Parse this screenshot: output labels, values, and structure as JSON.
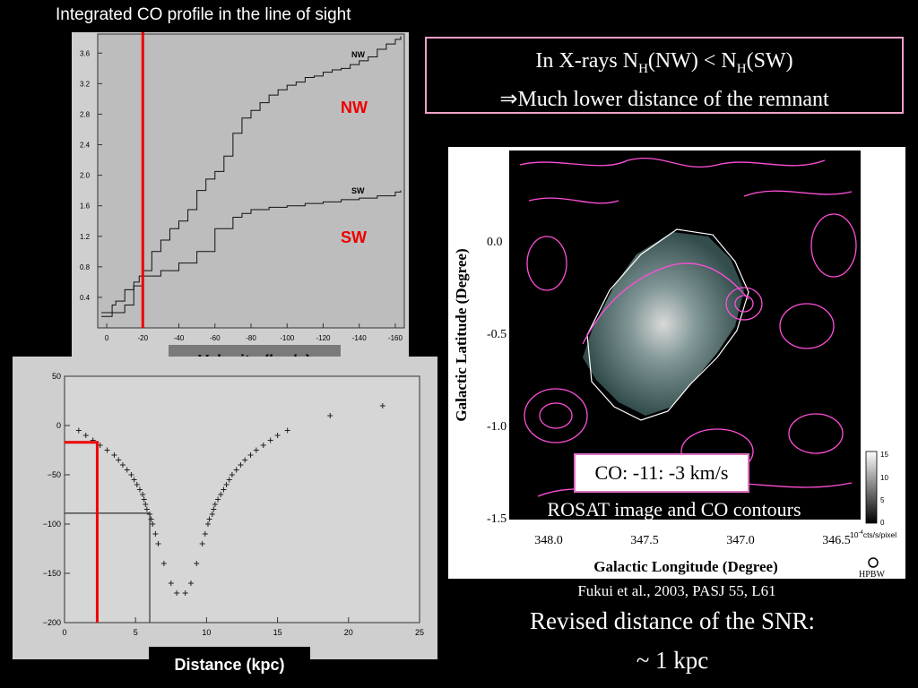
{
  "co_profile": {
    "title": "Integrated CO profile in the line of sight",
    "xlabel": "Velocity (km/s)",
    "nw_label": "NW",
    "sw_label": "SW",
    "small_nw": "NW",
    "small_sw": "SW"
  },
  "distance_plot": {
    "xlabel": "Distance (kpc)"
  },
  "xray_note": {
    "line1_prefix": "In X-rays N",
    "sub1": "H",
    "line1_mid": "(NW) < N",
    "sub2": "H",
    "line1_suffix": "(SW)",
    "line2": "⇒Much lower distance of the remnant"
  },
  "map": {
    "ylabel": "Galactic Latitude (Degree)",
    "xlabel": "Galactic Longitude (Degree)",
    "co_velocity": "CO: -11: -3 km/s",
    "caption": "ROSAT image and CO contours",
    "colorbar_unit_prefix": "10",
    "colorbar_unit_exp": "-4",
    "colorbar_unit_suffix": "cts/s/pixel",
    "beam_label": "HPBW"
  },
  "citation": "Fukui et al., 2003, PASJ 55, L61",
  "conclusion": {
    "line1": "Revised distance of the SNR:",
    "line2": "~ 1 kpc"
  },
  "chart_data": [
    {
      "type": "line",
      "x_ticks": [
        "0",
        "-20",
        "-40",
        "-60",
        "-80",
        "-100",
        "-120",
        "-140",
        "-160"
      ],
      "y_ticks": [
        "0.4",
        "0.8",
        "1.2",
        "1.6",
        "2.0",
        "2.4",
        "2.8",
        "3.2",
        "3.6"
      ],
      "xlim": [
        5,
        -165
      ],
      "ylim": [
        0,
        3.85
      ],
      "series": [
        {
          "name": "NW",
          "x": [
            3,
            -3,
            -5,
            -10,
            -15,
            -18,
            -20,
            -25,
            -30,
            -35,
            -40,
            -45,
            -50,
            -55,
            -60,
            -65,
            -70,
            -75,
            -80,
            -85,
            -90,
            -95,
            -100,
            -105,
            -110,
            -115,
            -120,
            -125,
            -130,
            -135,
            -140,
            -145,
            -150,
            -155,
            -160,
            -163
          ],
          "y": [
            0.2,
            0.3,
            0.35,
            0.5,
            0.6,
            0.68,
            0.75,
            1.0,
            1.15,
            1.3,
            1.4,
            1.55,
            1.8,
            1.95,
            2.05,
            2.25,
            2.55,
            2.75,
            2.85,
            2.95,
            3.05,
            3.12,
            3.18,
            3.22,
            3.28,
            3.3,
            3.35,
            3.38,
            3.4,
            3.45,
            3.5,
            3.55,
            3.65,
            3.72,
            3.78,
            3.82
          ]
        },
        {
          "name": "SW",
          "x": [
            3,
            -3,
            -10,
            -15,
            -20,
            -30,
            -40,
            -50,
            -60,
            -70,
            -75,
            -80,
            -90,
            -100,
            -110,
            -120,
            -130,
            -140,
            -150,
            -160,
            -163
          ],
          "y": [
            0.15,
            0.2,
            0.3,
            0.55,
            0.68,
            0.75,
            0.85,
            1.0,
            1.3,
            1.45,
            1.5,
            1.55,
            1.58,
            1.6,
            1.63,
            1.65,
            1.68,
            1.7,
            1.73,
            1.78,
            1.8
          ]
        }
      ],
      "marker_velocity": -20
    },
    {
      "type": "scatter",
      "x_ticks": [
        "0",
        "5",
        "10",
        "15",
        "20",
        "25"
      ],
      "y_ticks": [
        "50",
        "0",
        "−50",
        "−100",
        "−150",
        "−200"
      ],
      "xlim": [
        0,
        25
      ],
      "ylim": [
        -200,
        50
      ],
      "points": [
        [
          1,
          -5
        ],
        [
          1.5,
          -10
        ],
        [
          2,
          -15
        ],
        [
          2.5,
          -20
        ],
        [
          3,
          -25
        ],
        [
          3.5,
          -30
        ],
        [
          3.8,
          -35
        ],
        [
          4.1,
          -40
        ],
        [
          4.4,
          -45
        ],
        [
          4.7,
          -50
        ],
        [
          4.9,
          -55
        ],
        [
          5.1,
          -60
        ],
        [
          5.3,
          -65
        ],
        [
          5.5,
          -70
        ],
        [
          5.6,
          -75
        ],
        [
          5.7,
          -80
        ],
        [
          5.8,
          -85
        ],
        [
          6,
          -90
        ],
        [
          6.1,
          -95
        ],
        [
          6.2,
          -100
        ],
        [
          6.4,
          -110
        ],
        [
          6.6,
          -120
        ],
        [
          7,
          -140
        ],
        [
          7.5,
          -160
        ],
        [
          7.9,
          -170
        ],
        [
          8.5,
          -170
        ],
        [
          8.9,
          -160
        ],
        [
          9.3,
          -140
        ],
        [
          9.7,
          -120
        ],
        [
          9.9,
          -110
        ],
        [
          10.1,
          -100
        ],
        [
          10.2,
          -95
        ],
        [
          10.4,
          -90
        ],
        [
          10.5,
          -85
        ],
        [
          10.6,
          -80
        ],
        [
          10.8,
          -75
        ],
        [
          11,
          -70
        ],
        [
          11.2,
          -65
        ],
        [
          11.4,
          -60
        ],
        [
          11.6,
          -55
        ],
        [
          11.8,
          -50
        ],
        [
          12.1,
          -45
        ],
        [
          12.4,
          -40
        ],
        [
          12.7,
          -35
        ],
        [
          13.1,
          -30
        ],
        [
          13.5,
          -25
        ],
        [
          14,
          -20
        ],
        [
          14.5,
          -15
        ],
        [
          15,
          -10
        ],
        [
          15.7,
          -5
        ],
        [
          18.7,
          10
        ],
        [
          22.4,
          20
        ]
      ],
      "marker_distance": 2.3,
      "marker_velocity": -17,
      "reference_distance": 6,
      "reference_velocity": -89
    },
    {
      "type": "heatmap",
      "x_ticks": [
        "348.0",
        "347.5",
        "347.0",
        "346.5"
      ],
      "y_ticks": [
        "0.0",
        "-0.5",
        "-1.0",
        "-1.5"
      ],
      "colorbar_ticks": [
        "15",
        "10",
        "5",
        "0"
      ],
      "xlim": [
        348.2,
        346.45
      ],
      "ylim": [
        -1.6,
        0.5
      ]
    }
  ]
}
